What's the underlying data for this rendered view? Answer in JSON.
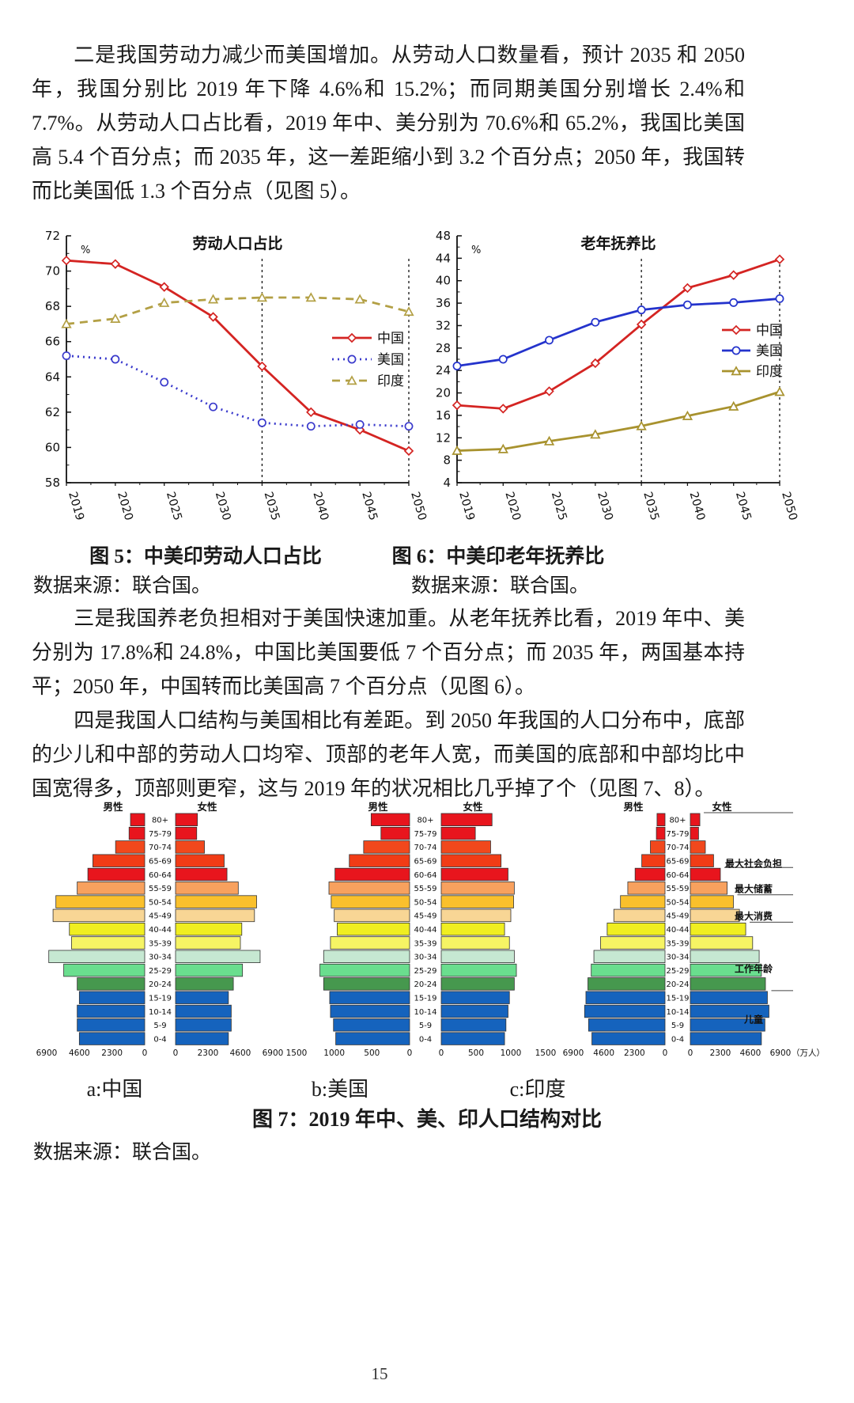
{
  "page": {
    "number": "15"
  },
  "paragraphs": {
    "labor_force": "二是我国劳动力减少而美国增加。从劳动人口数量看，预计 2035 和 2050 年，我国分别比 2019 年下降 4.6%和 15.2%；而同期美国分别增长 2.4%和 7.7%。从劳动人口占比看，2019 年中、美分别为 70.6%和 65.2%，我国比美国高 5.4 个百分点；而 2035 年，这一差距缩小到 3.2 个百分点；2050 年，我国转而比美国低 1.3 个百分点（见图 5）。",
    "dependency": "三是我国养老负担相对于美国快速加重。从老年抚养比看，2019 年中、美分别为 17.8%和 24.8%，中国比美国要低 7 个百分点；而 2035 年，两国基本持平；2050 年，中国转而比美国高 7 个百分点（见图 6）。",
    "structure": "四是我国人口结构与美国相比有差距。到 2050 年我国的人口分布中，底部的少儿和中部的劳动人口均窄、顶部的老年人宽，而美国的底部和中部均比中国宽得多，顶部则更窄，这与 2019 年的状况相比几乎掉了个（见图 7、8）。"
  },
  "figure5": {
    "caption": "图 5：中美印劳动人口占比",
    "source": "数据来源：联合国。"
  },
  "figure6": {
    "caption": "图 6：中美印老年抚养比",
    "source": "数据来源：联合国。"
  },
  "figure7": {
    "caption": "图 7：2019 年中、美、印人口结构对比",
    "source": "数据来源：联合国。",
    "sub_labels": [
      "a:中国",
      "b:美国",
      "c:印度"
    ],
    "gender_headers": [
      "男性",
      "女性"
    ],
    "band_colors": [
      "#e8151d",
      "#e8151d",
      "#f1481c",
      "#f13c16",
      "#e8151d",
      "#f8a15e",
      "#fac02c",
      "#f8d695",
      "#f0ee20",
      "#f6f464",
      "#c6e8d2",
      "#6ade8e",
      "#46984e",
      "#1563bd",
      "#1563bd",
      "#1563bd",
      "#1563bd"
    ]
  },
  "chart_data": [
    {
      "type": "line",
      "title": "劳动人口占比",
      "ylabel": "%",
      "categories": [
        "2019",
        "2020",
        "2025",
        "2030",
        "2035",
        "2040",
        "2045",
        "2050"
      ],
      "ylim": [
        58,
        72
      ],
      "ytick_step": 2,
      "grid": false,
      "legend_position": "right-inside",
      "ref_lines_at": [
        "2035",
        "2050"
      ],
      "series": [
        {
          "name": "中国",
          "color": "#d42422",
          "style": "solid",
          "marker": "diamond",
          "values": [
            70.6,
            70.4,
            69.1,
            67.4,
            64.6,
            62.0,
            61.0,
            59.8
          ]
        },
        {
          "name": "美国",
          "color": "#3a3acc",
          "style": "dotted",
          "marker": "circle",
          "values": [
            65.2,
            65.0,
            63.7,
            62.3,
            61.4,
            61.2,
            61.3,
            61.2
          ]
        },
        {
          "name": "印度",
          "color": "#b3a045",
          "style": "dashed",
          "marker": "triangle",
          "values": [
            67.0,
            67.3,
            68.2,
            68.4,
            68.5,
            68.5,
            68.4,
            67.7
          ]
        }
      ]
    },
    {
      "type": "line",
      "title": "老年抚养比",
      "ylabel": "%",
      "categories": [
        "2019",
        "2020",
        "2025",
        "2030",
        "2035",
        "2040",
        "2045",
        "2050"
      ],
      "ylim": [
        4,
        48
      ],
      "ytick_step": 4,
      "grid": false,
      "legend_position": "right-outside",
      "ref_lines_at": [
        "2035",
        "2050"
      ],
      "series": [
        {
          "name": "中国",
          "color": "#d42422",
          "style": "solid",
          "marker": "diamond",
          "values": [
            17.8,
            17.2,
            20.3,
            25.3,
            32.2,
            38.7,
            41.0,
            43.8
          ]
        },
        {
          "name": "美国",
          "color": "#2433cc",
          "style": "solid",
          "marker": "circle",
          "values": [
            24.8,
            26.0,
            29.4,
            32.6,
            34.8,
            35.7,
            36.1,
            36.8
          ]
        },
        {
          "name": "印度",
          "color": "#a8922e",
          "style": "solid",
          "marker": "triangle",
          "values": [
            9.7,
            10.0,
            11.4,
            12.6,
            14.1,
            15.9,
            17.6,
            20.2
          ]
        }
      ]
    },
    {
      "type": "bar",
      "subtype": "population_pyramid",
      "title": "a:中国",
      "unit": null,
      "axis_max": 6900,
      "axis_ticks": [
        0,
        2300,
        4600,
        6900
      ],
      "age_groups": [
        "80+",
        "75-79",
        "70-74",
        "65-69",
        "60-64",
        "55-59",
        "50-54",
        "45-49",
        "40-44",
        "35-39",
        "30-34",
        "25-29",
        "20-24",
        "15-19",
        "10-14",
        "5-9",
        "0-4"
      ],
      "series": [
        {
          "name": "男性",
          "values": [
            1000,
            1100,
            2050,
            3650,
            4000,
            4750,
            6250,
            6450,
            5300,
            5150,
            6750,
            5700,
            4750,
            4600,
            4750,
            4750,
            4600
          ]
        },
        {
          "name": "女性",
          "values": [
            1550,
            1500,
            2050,
            3450,
            3650,
            4450,
            5750,
            5600,
            4700,
            4600,
            6000,
            4750,
            4100,
            3750,
            3950,
            3950,
            3750
          ]
        }
      ]
    },
    {
      "type": "bar",
      "subtype": "population_pyramid",
      "title": "b:美国",
      "unit": null,
      "axis_max": 1500,
      "axis_ticks": [
        0,
        500,
        1000,
        1500
      ],
      "age_groups": [
        "80+",
        "75-79",
        "70-74",
        "65-69",
        "60-64",
        "55-59",
        "50-54",
        "45-49",
        "40-44",
        "35-39",
        "30-34",
        "25-29",
        "20-24",
        "15-19",
        "10-14",
        "5-9",
        "0-4"
      ],
      "series": [
        {
          "name": "男性",
          "values": [
            510,
            380,
            610,
            800,
            990,
            1070,
            1040,
            1000,
            960,
            1050,
            1140,
            1190,
            1140,
            1060,
            1050,
            1010,
            980
          ]
        },
        {
          "name": "女性",
          "values": [
            730,
            490,
            710,
            860,
            960,
            1050,
            1040,
            1000,
            910,
            980,
            1050,
            1080,
            1050,
            980,
            960,
            930,
            910
          ]
        }
      ]
    },
    {
      "type": "bar",
      "subtype": "population_pyramid",
      "title": "c:印度",
      "unit": "（万人）",
      "axis_max": 6900,
      "axis_ticks": [
        0,
        2300,
        4600,
        6900
      ],
      "age_groups": [
        "80+",
        "75-79",
        "70-74",
        "65-69",
        "60-64",
        "55-59",
        "50-54",
        "45-49",
        "40-44",
        "35-39",
        "30-34",
        "25-29",
        "20-24",
        "15-19",
        "10-14",
        "5-9",
        "0-4"
      ],
      "series": [
        {
          "name": "男性",
          "values": [
            600,
            650,
            1100,
            1750,
            2250,
            2800,
            3350,
            3850,
            4350,
            4850,
            5350,
            5550,
            5800,
            5950,
            6050,
            5750,
            5500
          ]
        },
        {
          "name": "女性",
          "values": [
            730,
            630,
            1150,
            1780,
            2300,
            2820,
            3300,
            3760,
            4240,
            4770,
            5270,
            5440,
            5750,
            5900,
            6020,
            5710,
            5440
          ]
        }
      ],
      "separator_lines_above": [
        "80+",
        "60-64",
        "50-54",
        "40-44",
        "15-19"
      ],
      "annotations": [
        {
          "label": "最大社会负担",
          "from": "80+",
          "to": "65-69"
        },
        {
          "label": "最大储蓄",
          "from": "60-64",
          "to": "55-59"
        },
        {
          "label": "最大消费",
          "from": "50-54",
          "to": "45-49"
        },
        {
          "label": "工作年龄",
          "from": "40-44",
          "to": "20-24"
        },
        {
          "label": "儿童",
          "from": "15-19",
          "to": "0-4"
        }
      ]
    }
  ]
}
